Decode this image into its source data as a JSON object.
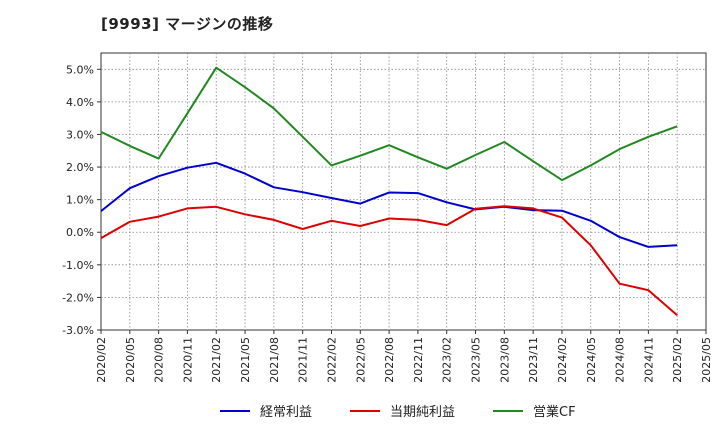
{
  "chart_data": {
    "type": "line",
    "title": "[9993]  マージンの推移",
    "x": [
      "2020/02",
      "2020/05",
      "2020/08",
      "2020/11",
      "2021/02",
      "2021/05",
      "2021/08",
      "2021/11",
      "2022/02",
      "2022/05",
      "2022/08",
      "2022/11",
      "2023/02",
      "2023/05",
      "2023/08",
      "2023/11",
      "2024/02",
      "2024/05",
      "2024/08",
      "2024/11",
      "2025/02",
      "2025/05"
    ],
    "yticks": [
      "5.0%",
      "4.0%",
      "3.0%",
      "2.0%",
      "1.0%",
      "0.0%",
      "-1.0%",
      "-2.0%",
      "-3.0%"
    ],
    "ylim": [
      -3.0,
      5.5
    ],
    "grid": true,
    "legend_position": "bottom",
    "series": [
      {
        "name": "経常利益",
        "color": "#0000cc",
        "values": [
          0.65,
          1.35,
          1.72,
          1.98,
          2.13,
          1.8,
          1.38,
          1.23,
          1.05,
          0.88,
          1.22,
          1.2,
          0.92,
          0.7,
          0.78,
          0.68,
          0.66,
          0.35,
          -0.15,
          -0.45,
          -0.4,
          null
        ]
      },
      {
        "name": "当期純利益",
        "color": "#dd0000",
        "values": [
          -0.18,
          0.32,
          0.48,
          0.73,
          0.78,
          0.55,
          0.38,
          0.1,
          0.35,
          0.19,
          0.42,
          0.38,
          0.22,
          0.72,
          0.8,
          0.73,
          0.45,
          -0.4,
          -1.58,
          -1.78,
          -2.55,
          null
        ]
      },
      {
        "name": "営業CF",
        "color": "#228822",
        "values": [
          3.08,
          2.65,
          2.26,
          3.65,
          5.05,
          4.45,
          3.8,
          2.93,
          2.05,
          2.35,
          2.67,
          2.3,
          1.95,
          2.37,
          2.77,
          2.18,
          1.6,
          2.05,
          2.55,
          2.93,
          3.25,
          null
        ]
      }
    ]
  }
}
